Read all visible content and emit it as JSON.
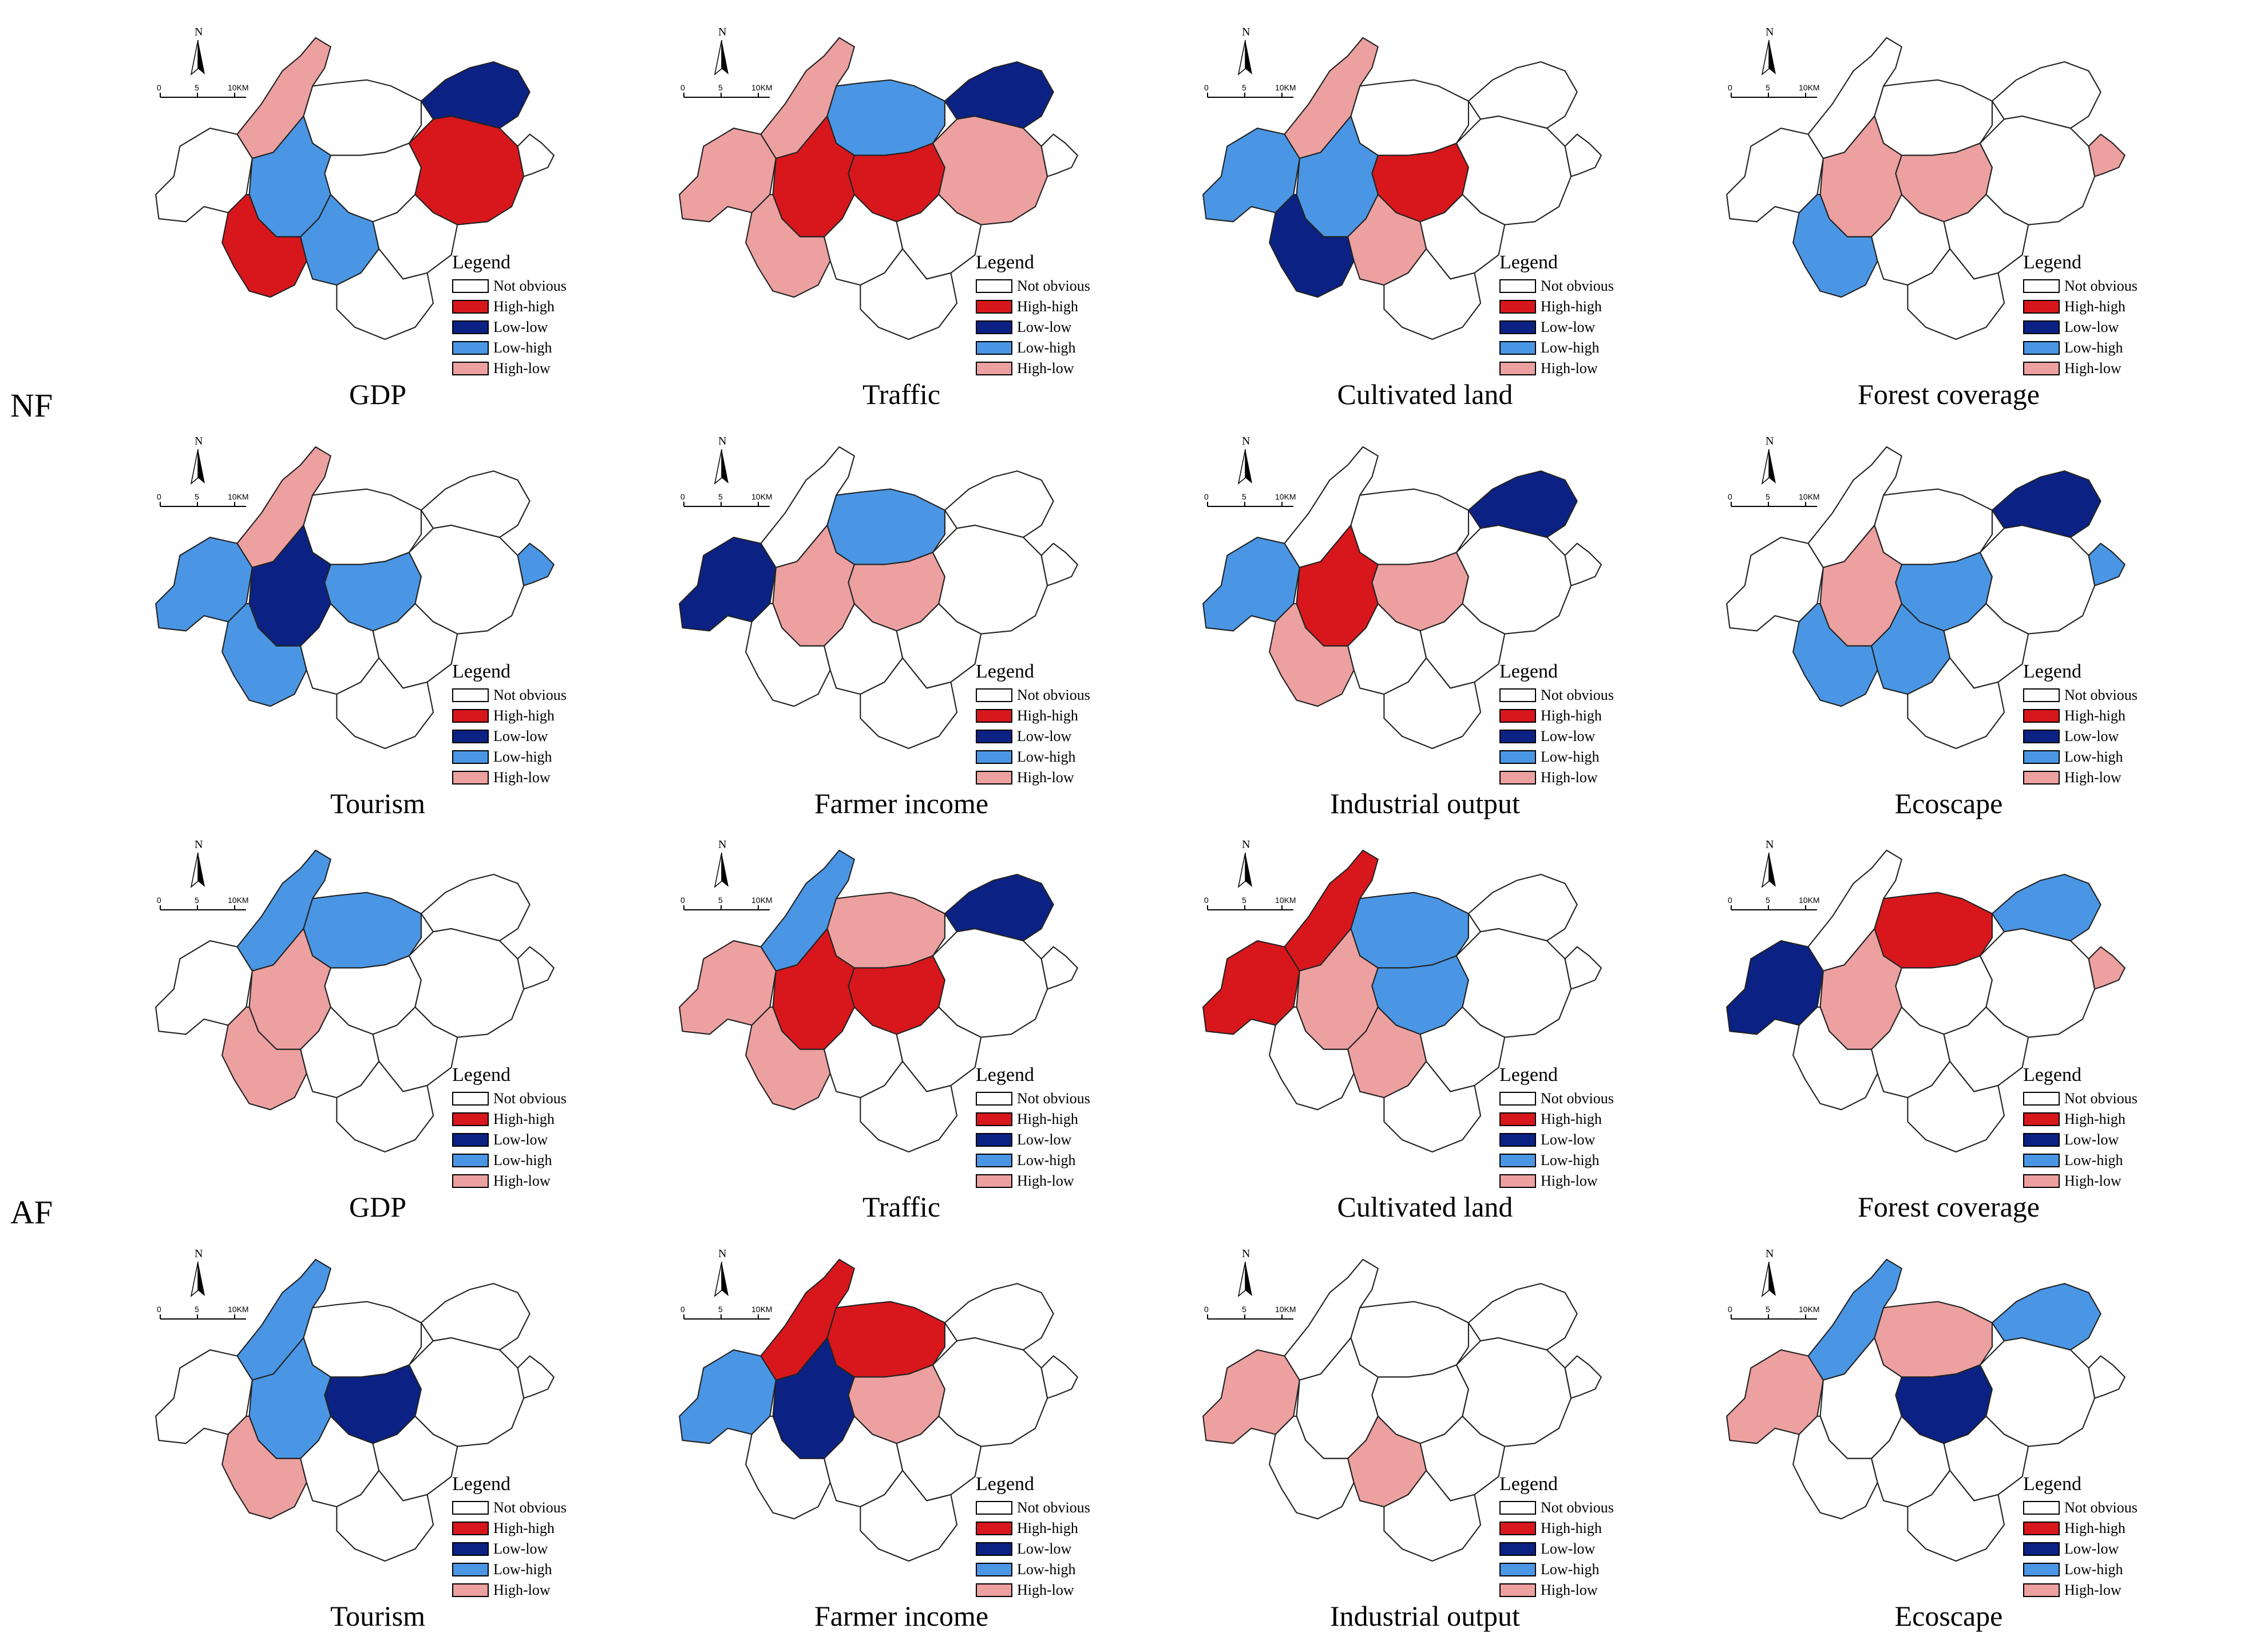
{
  "rows": [
    {
      "label": "NF"
    },
    {
      "label": "AF"
    }
  ],
  "legend": {
    "title": "Legend",
    "items": [
      {
        "key": "not_obvious",
        "label": "Not obvious",
        "color": "#ffffff"
      },
      {
        "key": "high_high",
        "label": "High-high",
        "color": "#d7171c"
      },
      {
        "key": "low_low",
        "label": "Low-low",
        "color": "#0b2284"
      },
      {
        "key": "low_high",
        "label": "Low-high",
        "color": "#4a96e4"
      },
      {
        "key": "high_low",
        "label": "High-low",
        "color": "#eda0a0"
      }
    ]
  },
  "compass": {
    "north": "N",
    "scale_0": "0",
    "scale_5": "5",
    "scale_10": "10KM"
  },
  "panels": [
    {
      "title": "GDP",
      "regions": {
        "r1": "not_obvious",
        "r2": "high_low",
        "r3": "not_obvious",
        "r4": "low_low",
        "r5": "not_obvious",
        "r6": "low_high",
        "r7": "high_high",
        "r8": "low_high",
        "r9": "high_high",
        "r10": "not_obvious",
        "r11": "not_obvious",
        "r12": "not_obvious"
      }
    },
    {
      "title": "Traffic",
      "regions": {
        "r1": "high_low",
        "r2": "high_low",
        "r3": "low_high",
        "r4": "low_low",
        "r5": "high_high",
        "r6": "high_high",
        "r7": "high_low",
        "r8": "not_obvious",
        "r9": "high_low",
        "r10": "not_obvious",
        "r11": "not_obvious",
        "r12": "not_obvious"
      }
    },
    {
      "title": "Cultivated land",
      "regions": {
        "r1": "low_high",
        "r2": "high_low",
        "r3": "not_obvious",
        "r4": "not_obvious",
        "r5": "high_high",
        "r6": "low_high",
        "r7": "low_low",
        "r8": "high_low",
        "r9": "not_obvious",
        "r10": "not_obvious",
        "r11": "not_obvious",
        "r12": "not_obvious"
      }
    },
    {
      "title": "Forest coverage",
      "regions": {
        "r1": "not_obvious",
        "r2": "not_obvious",
        "r3": "not_obvious",
        "r4": "not_obvious",
        "r5": "high_low",
        "r6": "high_low",
        "r7": "low_high",
        "r8": "not_obvious",
        "r9": "not_obvious",
        "r10": "not_obvious",
        "r11": "not_obvious",
        "r12": "high_low"
      }
    },
    {
      "title": "Tourism",
      "regions": {
        "r1": "low_high",
        "r2": "high_low",
        "r3": "not_obvious",
        "r4": "not_obvious",
        "r5": "low_high",
        "r6": "low_low",
        "r7": "low_high",
        "r8": "not_obvious",
        "r9": "not_obvious",
        "r10": "not_obvious",
        "r11": "not_obvious",
        "r12": "low_high"
      }
    },
    {
      "title": "Farmer income",
      "regions": {
        "r1": "low_low",
        "r2": "not_obvious",
        "r3": "low_high",
        "r4": "not_obvious",
        "r5": "high_low",
        "r6": "high_low",
        "r7": "not_obvious",
        "r8": "not_obvious",
        "r9": "not_obvious",
        "r10": "not_obvious",
        "r11": "not_obvious",
        "r12": "not_obvious"
      }
    },
    {
      "title": "Industrial output",
      "regions": {
        "r1": "low_high",
        "r2": "not_obvious",
        "r3": "not_obvious",
        "r4": "low_low",
        "r5": "high_low",
        "r6": "high_high",
        "r7": "high_low",
        "r8": "not_obvious",
        "r9": "not_obvious",
        "r10": "not_obvious",
        "r11": "not_obvious",
        "r12": "not_obvious"
      }
    },
    {
      "title": "Ecoscape",
      "regions": {
        "r1": "not_obvious",
        "r2": "not_obvious",
        "r3": "not_obvious",
        "r4": "low_low",
        "r5": "low_high",
        "r6": "high_low",
        "r7": "low_high",
        "r8": "low_high",
        "r9": "not_obvious",
        "r10": "not_obvious",
        "r11": "not_obvious",
        "r12": "low_high"
      }
    },
    {
      "title": "GDP",
      "regions": {
        "r1": "not_obvious",
        "r2": "low_high",
        "r3": "low_high",
        "r4": "not_obvious",
        "r5": "not_obvious",
        "r6": "high_low",
        "r7": "high_low",
        "r8": "not_obvious",
        "r9": "not_obvious",
        "r10": "not_obvious",
        "r11": "not_obvious",
        "r12": "not_obvious"
      }
    },
    {
      "title": "Traffic",
      "regions": {
        "r1": "high_low",
        "r2": "low_high",
        "r3": "high_low",
        "r4": "low_low",
        "r5": "high_high",
        "r6": "high_high",
        "r7": "high_low",
        "r8": "not_obvious",
        "r9": "not_obvious",
        "r10": "not_obvious",
        "r11": "not_obvious",
        "r12": "not_obvious"
      }
    },
    {
      "title": "Cultivated land",
      "regions": {
        "r1": "high_high",
        "r2": "high_high",
        "r3": "low_high",
        "r4": "not_obvious",
        "r5": "low_high",
        "r6": "high_low",
        "r7": "not_obvious",
        "r8": "high_low",
        "r9": "not_obvious",
        "r10": "not_obvious",
        "r11": "not_obvious",
        "r12": "not_obvious"
      }
    },
    {
      "title": "Forest coverage",
      "regions": {
        "r1": "low_low",
        "r2": "not_obvious",
        "r3": "high_high",
        "r4": "low_high",
        "r5": "not_obvious",
        "r6": "high_low",
        "r7": "not_obvious",
        "r8": "not_obvious",
        "r9": "not_obvious",
        "r10": "not_obvious",
        "r11": "not_obvious",
        "r12": "high_low"
      }
    },
    {
      "title": "Tourism",
      "regions": {
        "r1": "not_obvious",
        "r2": "low_high",
        "r3": "not_obvious",
        "r4": "not_obvious",
        "r5": "low_low",
        "r6": "low_high",
        "r7": "high_low",
        "r8": "not_obvious",
        "r9": "not_obvious",
        "r10": "not_obvious",
        "r11": "not_obvious",
        "r12": "not_obvious"
      }
    },
    {
      "title": "Farmer income",
      "regions": {
        "r1": "low_high",
        "r2": "high_high",
        "r3": "high_high",
        "r4": "not_obvious",
        "r5": "high_low",
        "r6": "low_low",
        "r7": "not_obvious",
        "r8": "not_obvious",
        "r9": "not_obvious",
        "r10": "not_obvious",
        "r11": "not_obvious",
        "r12": "not_obvious"
      }
    },
    {
      "title": "Industrial output",
      "regions": {
        "r1": "high_low",
        "r2": "not_obvious",
        "r3": "not_obvious",
        "r4": "not_obvious",
        "r5": "not_obvious",
        "r6": "not_obvious",
        "r7": "not_obvious",
        "r8": "high_low",
        "r9": "not_obvious",
        "r10": "not_obvious",
        "r11": "not_obvious",
        "r12": "not_obvious"
      }
    },
    {
      "title": "Ecoscape",
      "regions": {
        "r1": "high_low",
        "r2": "low_high",
        "r3": "high_low",
        "r4": "low_high",
        "r5": "low_low",
        "r6": "not_obvious",
        "r7": "not_obvious",
        "r8": "not_obvious",
        "r9": "not_obvious",
        "r10": "not_obvious",
        "r11": "not_obvious",
        "r12": "not_obvious"
      }
    }
  ]
}
